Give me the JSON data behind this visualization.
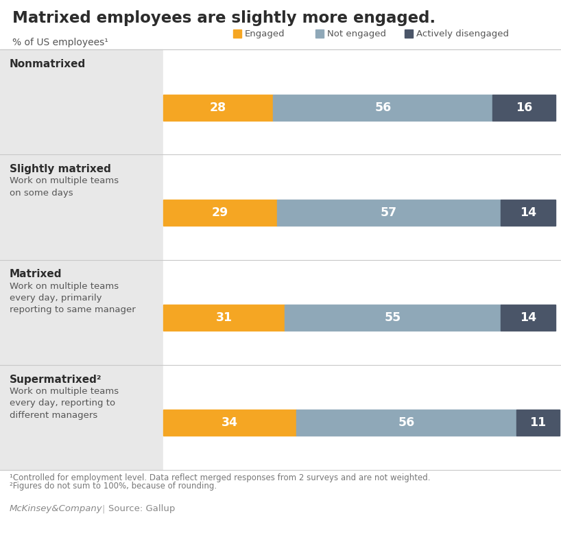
{
  "title": "Matrixed employees are slightly more engaged.",
  "subtitle": "% of US employees¹",
  "legend_items": [
    "Engaged",
    "Not engaged",
    "Actively disengaged"
  ],
  "colors": {
    "engaged": "#F5A623",
    "not_engaged": "#8FA8B8",
    "actively_disengaged": "#4A5568",
    "label_bg": "#E8E8E8",
    "background": "#FFFFFF",
    "bar_text": "#FFFFFF",
    "grid_line": "#C8C8C8"
  },
  "categories": [
    {
      "name": "Nonmatrixed",
      "subtitle": "",
      "engaged": 28,
      "not_engaged": 56,
      "disengaged": 16
    },
    {
      "name": "Slightly matrixed",
      "subtitle": "Work on multiple teams\non some days",
      "engaged": 29,
      "not_engaged": 57,
      "disengaged": 14
    },
    {
      "name": "Matrixed",
      "subtitle": "Work on multiple teams\nevery day, primarily\nreporting to same manager",
      "engaged": 31,
      "not_engaged": 55,
      "disengaged": 14
    },
    {
      "name": "Supermatrixed²",
      "subtitle": "Work on multiple teams\nevery day, reporting to\ndifferent managers",
      "engaged": 34,
      "not_engaged": 56,
      "disengaged": 11
    }
  ],
  "footnote1": "¹Controlled for employment level. Data reflect merged responses from 2 surveys and are not weighted.",
  "footnote2": "²Figures do not sum to 100%, because of rounding.",
  "brand": "McKinsey&Company",
  "source_label": "Source: Gallup"
}
